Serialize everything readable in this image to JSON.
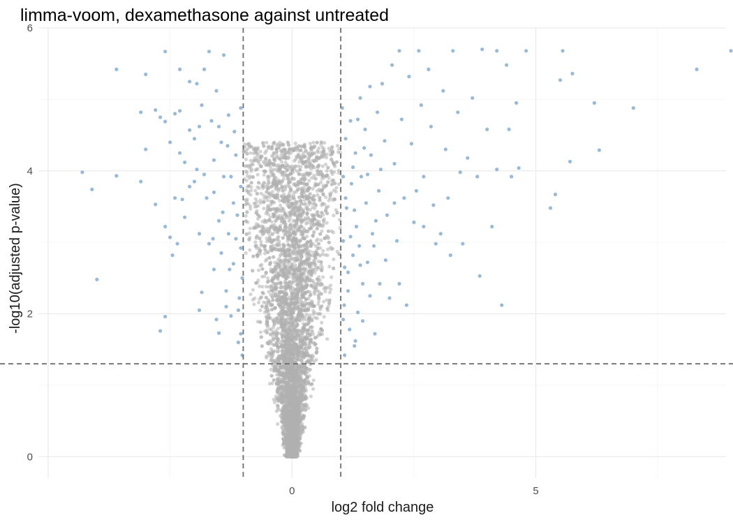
{
  "chart_data": {
    "type": "scatter",
    "title": "limma-voom, dexamethasone against untreated",
    "xlabel": "log2 fold change",
    "ylabel": "-log10(adjusted p-value)",
    "xlim": [
      -5.2,
      8.9
    ],
    "ylim": [
      -0.3,
      6.0
    ],
    "x_ticks": [
      0,
      5
    ],
    "y_ticks": [
      0,
      2,
      4,
      6
    ],
    "grid": true,
    "legend": "none",
    "thresholds": {
      "log2fc": [
        -1,
        1
      ],
      "neg_log10_padj": 1.3
    },
    "colors": {
      "significant": "#4682B4",
      "not_significant": "#B0B0B0",
      "threshold_line": "#6E6E6E"
    },
    "series": [
      {
        "status": "significant",
        "points": [
          [
            -4.3,
            3.98
          ],
          [
            -4.1,
            3.74
          ],
          [
            -4.0,
            2.48
          ],
          [
            -3.6,
            5.42
          ],
          [
            -3.6,
            3.93
          ],
          [
            -3.1,
            4.82
          ],
          [
            -3.1,
            3.85
          ],
          [
            -3.0,
            5.35
          ],
          [
            -3.0,
            4.3
          ],
          [
            -2.8,
            4.85
          ],
          [
            -2.8,
            3.53
          ],
          [
            -2.7,
            4.75
          ],
          [
            -2.7,
            1.76
          ],
          [
            -2.6,
            5.67
          ],
          [
            -2.6,
            4.69
          ],
          [
            -2.6,
            1.96
          ],
          [
            -2.5,
            4.4
          ],
          [
            -2.5,
            3.07
          ],
          [
            -2.4,
            4.8
          ],
          [
            -2.4,
            3.62
          ],
          [
            -2.35,
            2.98
          ],
          [
            -2.3,
            5.42
          ],
          [
            -2.3,
            4.84
          ],
          [
            -2.3,
            4.25
          ],
          [
            -2.2,
            4.12
          ],
          [
            -2.2,
            3.35
          ],
          [
            -2.1,
            5.25
          ],
          [
            -2.1,
            4.57
          ],
          [
            -2.0,
            4.45
          ],
          [
            -2.0,
            3.85
          ],
          [
            -1.95,
            5.22
          ],
          [
            -1.9,
            3.12
          ],
          [
            -1.9,
            2.05
          ],
          [
            -1.85,
            4.92
          ],
          [
            -1.8,
            5.42
          ],
          [
            -1.8,
            3.95
          ],
          [
            -1.7,
            5.67
          ],
          [
            -1.7,
            2.98
          ],
          [
            -1.65,
            4.7
          ],
          [
            -1.6,
            3.7
          ],
          [
            -1.6,
            2.62
          ],
          [
            -1.55,
            5.12
          ],
          [
            -1.5,
            3.3
          ],
          [
            -1.5,
            1.73
          ],
          [
            -1.45,
            4.4
          ],
          [
            -1.4,
            5.62
          ],
          [
            -1.4,
            3.92
          ],
          [
            -1.35,
            2.32
          ],
          [
            -1.3,
            4.78
          ],
          [
            -1.3,
            3.12
          ],
          [
            -1.25,
            1.97
          ],
          [
            -1.2,
            3.55
          ],
          [
            -1.2,
            2.7
          ],
          [
            -1.15,
            4.22
          ],
          [
            -1.1,
            2.05
          ],
          [
            -1.1,
            1.6
          ],
          [
            -1.05,
            4.88
          ],
          [
            -1.05,
            3.78
          ],
          [
            -1.05,
            2.92
          ],
          [
            -1.02,
            2.5
          ],
          [
            -1.02,
            1.42
          ],
          [
            -1.6,
            4.15
          ],
          [
            -1.9,
            4.62
          ],
          [
            -2.6,
            3.22
          ],
          [
            -2.45,
            2.82
          ],
          [
            -1.75,
            3.62
          ],
          [
            -1.5,
            4.62
          ],
          [
            -1.45,
            2.85
          ],
          [
            -1.25,
            3.92
          ],
          [
            -1.12,
            3.38
          ],
          [
            -1.35,
            2.1
          ],
          [
            -1.55,
            1.92
          ],
          [
            -2.1,
            3.78
          ],
          [
            -1.85,
            2.3
          ],
          [
            -1.18,
            4.55
          ],
          [
            -1.42,
            3.42
          ],
          [
            -1.08,
            2.22
          ],
          [
            -1.05,
            1.72
          ],
          [
            -1.28,
            2.62
          ],
          [
            -1.62,
            3.05
          ],
          [
            -1.95,
            4.02
          ],
          [
            -2.25,
            3.6
          ],
          [
            -1.32,
            4.35
          ],
          [
            -1.15,
            3.05
          ],
          [
            1.03,
            4.88
          ],
          [
            1.05,
            3.92
          ],
          [
            1.05,
            3.02
          ],
          [
            1.07,
            2.12
          ],
          [
            1.08,
            1.42
          ],
          [
            1.1,
            4.45
          ],
          [
            1.12,
            3.48
          ],
          [
            1.15,
            2.58
          ],
          [
            1.18,
            1.78
          ],
          [
            1.2,
            4.7
          ],
          [
            1.22,
            3.82
          ],
          [
            1.25,
            2.82
          ],
          [
            1.28,
            1.55
          ],
          [
            1.3,
            4.25
          ],
          [
            1.32,
            3.22
          ],
          [
            1.35,
            2.02
          ],
          [
            1.4,
            5.02
          ],
          [
            1.42,
            3.92
          ],
          [
            1.45,
            2.42
          ],
          [
            1.5,
            4.58
          ],
          [
            1.52,
            3.55
          ],
          [
            1.55,
            2.72
          ],
          [
            1.6,
            5.18
          ],
          [
            1.62,
            4.22
          ],
          [
            1.65,
            3.12
          ],
          [
            1.7,
            1.72
          ],
          [
            1.75,
            4.82
          ],
          [
            1.78,
            3.72
          ],
          [
            1.8,
            2.42
          ],
          [
            1.85,
            5.22
          ],
          [
            1.9,
            4.42
          ],
          [
            1.95,
            3.38
          ],
          [
            2.0,
            2.22
          ],
          [
            2.05,
            5.48
          ],
          [
            2.1,
            4.1
          ],
          [
            2.15,
            3.02
          ],
          [
            2.2,
            5.68
          ],
          [
            2.25,
            4.72
          ],
          [
            2.3,
            3.62
          ],
          [
            2.35,
            2.12
          ],
          [
            2.4,
            5.32
          ],
          [
            2.45,
            4.38
          ],
          [
            2.5,
            3.28
          ],
          [
            2.6,
            5.68
          ],
          [
            2.65,
            4.92
          ],
          [
            2.7,
            3.92
          ],
          [
            2.8,
            5.42
          ],
          [
            2.85,
            4.62
          ],
          [
            2.9,
            3.52
          ],
          [
            2.95,
            2.98
          ],
          [
            3.1,
            5.12
          ],
          [
            3.15,
            4.3
          ],
          [
            3.2,
            3.62
          ],
          [
            3.25,
            2.82
          ],
          [
            3.3,
            5.68
          ],
          [
            3.4,
            4.82
          ],
          [
            3.45,
            3.98
          ],
          [
            3.5,
            2.98
          ],
          [
            3.6,
            4.18
          ],
          [
            3.7,
            5.02
          ],
          [
            3.8,
            3.92
          ],
          [
            3.85,
            2.53
          ],
          [
            3.9,
            5.7
          ],
          [
            4.0,
            4.58
          ],
          [
            4.1,
            3.22
          ],
          [
            4.2,
            5.68
          ],
          [
            4.2,
            4.02
          ],
          [
            4.3,
            2.12
          ],
          [
            4.4,
            5.48
          ],
          [
            4.45,
            4.58
          ],
          [
            4.5,
            3.92
          ],
          [
            4.6,
            4.95
          ],
          [
            4.65,
            4.04
          ],
          [
            4.8,
            5.68
          ],
          [
            5.3,
            3.48
          ],
          [
            5.4,
            3.67
          ],
          [
            5.5,
            5.27
          ],
          [
            5.55,
            5.68
          ],
          [
            5.7,
            4.13
          ],
          [
            5.75,
            5.36
          ],
          [
            6.2,
            4.95
          ],
          [
            6.3,
            4.29
          ],
          [
            7.0,
            4.88
          ],
          [
            8.3,
            5.42
          ],
          [
            9.0,
            5.68
          ],
          [
            1.1,
            3.62
          ],
          [
            1.25,
            4.05
          ],
          [
            1.38,
            2.95
          ],
          [
            1.15,
            2.32
          ],
          [
            1.45,
            1.9
          ],
          [
            1.6,
            2.25
          ],
          [
            1.72,
            3.3
          ],
          [
            1.92,
            2.75
          ],
          [
            2.2,
            2.42
          ],
          [
            1.35,
            4.72
          ],
          [
            1.55,
            3.95
          ],
          [
            1.82,
            4.02
          ],
          [
            2.55,
            3.72
          ],
          [
            3.05,
            3.12
          ],
          [
            1.08,
            2.65
          ],
          [
            1.3,
            1.62
          ],
          [
            1.2,
            3.08
          ],
          [
            1.48,
            4.32
          ],
          [
            1.68,
            2.95
          ],
          [
            2.7,
            3.22
          ],
          [
            1.05,
            1.92
          ],
          [
            1.4,
            2.68
          ],
          [
            2.1,
            3.55
          ],
          [
            1.28,
            3.45
          ]
        ]
      },
      {
        "status": "not_significant",
        "generated_from": {
          "count": 5500,
          "x_range_above_cutoff": [
            -1,
            1
          ],
          "x_range_below_cutoff": [
            -1.6,
            1.6
          ],
          "shape": "volcano, abs(log2fc) grows with -log10(adjusted p-value)",
          "peak_neg_log10_padj": 4.4
        }
      }
    ]
  }
}
